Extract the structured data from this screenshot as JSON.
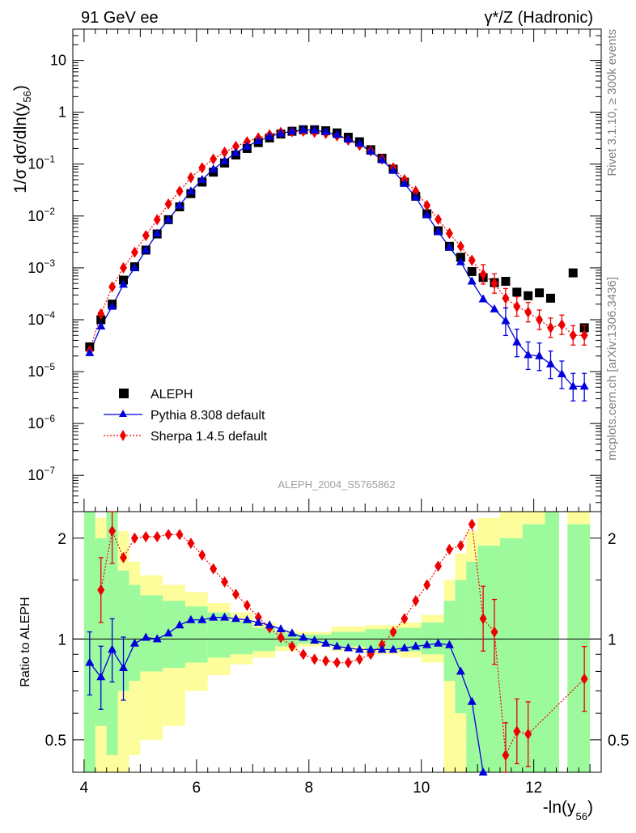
{
  "header": {
    "left_title": "91 GeV ee",
    "right_title": "γ*/Z (Hadronic)"
  },
  "side_labels": {
    "rivet": "Rivet 3.1.10, ≥ 300k events",
    "mcplots": "mcplots.cern.ch [arXiv:1306.3436]"
  },
  "colors": {
    "aleph": "#000000",
    "pythia": "#0000dd",
    "sherpa": "#ee0000",
    "band_green": "#9cfa9c",
    "band_yellow": "#fdfd9c"
  },
  "chart_data": [
    {
      "type": "scatter",
      "title": "ALEPH_2004_S5765862",
      "ylabel": "1/σ dσ/dln(y56)",
      "ylabel_parts": {
        "pre": "1/σ  dσ/dln(y",
        "sub": "56",
        "post": ")"
      },
      "yscale": "log",
      "xlim": [
        3.8,
        13.2
      ],
      "ylim": [
        2e-08,
        40
      ],
      "y_ticks": [
        {
          "value": 10,
          "label": "10"
        },
        {
          "value": 1,
          "label": "1"
        },
        {
          "value": 0.1,
          "base": "10",
          "exp": "−1"
        },
        {
          "value": 0.01,
          "base": "10",
          "exp": "−2"
        },
        {
          "value": 0.001,
          "base": "10",
          "exp": "−3"
        },
        {
          "value": 0.0001,
          "base": "10",
          "exp": "−4"
        },
        {
          "value": 1e-05,
          "base": "10",
          "exp": "−5"
        },
        {
          "value": 1e-06,
          "base": "10",
          "exp": "−6"
        },
        {
          "value": 1e-07,
          "base": "10",
          "exp": "−7"
        }
      ],
      "legend_position": "lower-left",
      "legend": [
        "ALEPH",
        "Pythia 8.308 default",
        "Sherpa 1.4.5 default"
      ],
      "series": [
        {
          "name": "ALEPH",
          "style": "square-marker",
          "x": [
            4.1,
            4.3,
            4.5,
            4.7,
            4.9,
            5.1,
            5.3,
            5.5,
            5.7,
            5.9,
            6.1,
            6.3,
            6.5,
            6.7,
            6.9,
            7.1,
            7.3,
            7.5,
            7.7,
            7.9,
            8.1,
            8.3,
            8.5,
            8.7,
            8.9,
            9.1,
            9.3,
            9.5,
            9.7,
            9.9,
            10.1,
            10.3,
            10.5,
            10.7,
            10.9,
            11.1,
            11.3,
            11.5,
            11.7,
            11.9,
            12.1,
            12.3,
            12.7,
            12.9
          ],
          "values": [
            3e-05,
            0.0001,
            0.0002,
            0.00058,
            0.00105,
            0.0022,
            0.0045,
            0.0085,
            0.015,
            0.027,
            0.045,
            0.07,
            0.105,
            0.15,
            0.2,
            0.26,
            0.32,
            0.38,
            0.43,
            0.46,
            0.46,
            0.44,
            0.4,
            0.33,
            0.27,
            0.19,
            0.13,
            0.08,
            0.045,
            0.024,
            0.011,
            0.0052,
            0.0026,
            0.0016,
            0.00085,
            0.00065,
            0.00052,
            0.00055,
            0.00034,
            0.00029,
            0.00033,
            0.00026,
            0.0008,
            7e-05
          ]
        },
        {
          "name": "Pythia 8.308 default",
          "style": "solid-line-triangle",
          "x": [
            4.1,
            4.3,
            4.5,
            4.7,
            4.9,
            5.1,
            5.3,
            5.5,
            5.7,
            5.9,
            6.1,
            6.3,
            6.5,
            6.7,
            6.9,
            7.1,
            7.3,
            7.5,
            7.7,
            7.9,
            8.1,
            8.3,
            8.5,
            8.7,
            8.9,
            9.1,
            9.3,
            9.5,
            9.7,
            9.9,
            10.1,
            10.3,
            10.5,
            10.7,
            10.9,
            11.1,
            11.3,
            11.5,
            11.7,
            11.9,
            12.1,
            12.3,
            12.5,
            12.7,
            12.9
          ],
          "values": [
            2.3e-05,
            7.5e-05,
            0.00018,
            0.00048,
            0.001,
            0.0022,
            0.0046,
            0.0085,
            0.016,
            0.03,
            0.05,
            0.08,
            0.115,
            0.165,
            0.22,
            0.28,
            0.34,
            0.39,
            0.43,
            0.46,
            0.45,
            0.42,
            0.37,
            0.3,
            0.25,
            0.175,
            0.12,
            0.075,
            0.042,
            0.023,
            0.0105,
            0.005,
            0.0025,
            0.0013,
            0.00055,
            0.00025,
            0.00016,
            9.5e-05,
            3.7e-05,
            2.1e-05,
            2e-05,
            1.4e-05,
            9e-06,
            5.2e-06,
            5.2e-06
          ]
        },
        {
          "name": "Sherpa 1.4.5 default",
          "style": "dotted-line-diamond",
          "x": [
            4.1,
            4.3,
            4.5,
            4.7,
            4.9,
            5.1,
            5.3,
            5.5,
            5.7,
            5.9,
            6.1,
            6.3,
            6.5,
            6.7,
            6.9,
            7.1,
            7.3,
            7.5,
            7.7,
            7.9,
            8.1,
            8.3,
            8.5,
            8.7,
            8.9,
            9.1,
            9.3,
            9.5,
            9.7,
            9.9,
            10.1,
            10.3,
            10.5,
            10.7,
            10.9,
            11.1,
            11.3,
            11.5,
            11.7,
            11.9,
            12.1,
            12.3,
            12.5,
            12.7,
            12.9
          ],
          "values": [
            2.5e-05,
            0.00013,
            0.00043,
            0.001,
            0.002,
            0.0042,
            0.0085,
            0.017,
            0.03,
            0.055,
            0.085,
            0.125,
            0.17,
            0.22,
            0.27,
            0.32,
            0.37,
            0.41,
            0.42,
            0.43,
            0.41,
            0.39,
            0.35,
            0.29,
            0.23,
            0.18,
            0.125,
            0.085,
            0.05,
            0.03,
            0.016,
            0.0086,
            0.0046,
            0.0026,
            0.0014,
            0.00075,
            0.0005,
            0.00026,
            0.00018,
            0.00014,
            0.0001,
            7e-05,
            8e-05,
            5e-05,
            5e-05
          ]
        }
      ]
    },
    {
      "type": "line",
      "ylabel": "Ratio to ALEPH",
      "xlabel_parts": {
        "pre": "-ln(y",
        "sub": "56",
        "post": ")"
      },
      "yscale": "log",
      "xlim": [
        3.8,
        13.2
      ],
      "ylim": [
        0.4,
        2.4
      ],
      "x_ticks": [
        4,
        6,
        8,
        10,
        12
      ],
      "y_ticks": [
        {
          "value": 2,
          "label": "2"
        },
        {
          "value": 1,
          "label": "1"
        },
        {
          "value": 0.5,
          "label": "0.5"
        }
      ],
      "reference_line": 1,
      "bands": {
        "green": [
          {
            "x": [
              4.0,
              4.2
            ],
            "range": [
              0.4,
              2.4
            ]
          },
          {
            "x": [
              4.2,
              4.4
            ],
            "range": [
              0.55,
              2.0
            ]
          },
          {
            "x": [
              4.4,
              4.6
            ],
            "range": [
              0.45,
              2.4
            ]
          },
          {
            "x": [
              4.6,
              4.8
            ],
            "range": [
              0.7,
              1.6
            ]
          },
          {
            "x": [
              4.8,
              5.0
            ],
            "range": [
              0.75,
              1.45
            ]
          },
          {
            "x": [
              5.0,
              5.4
            ],
            "range": [
              0.8,
              1.35
            ]
          },
          {
            "x": [
              5.4,
              5.8
            ],
            "range": [
              0.82,
              1.3
            ]
          },
          {
            "x": [
              5.8,
              6.2
            ],
            "range": [
              0.85,
              1.25
            ]
          },
          {
            "x": [
              6.2,
              6.6
            ],
            "range": [
              0.88,
              1.2
            ]
          },
          {
            "x": [
              6.6,
              7.0
            ],
            "range": [
              0.9,
              1.13
            ]
          },
          {
            "x": [
              7.0,
              7.4
            ],
            "range": [
              0.92,
              1.08
            ]
          },
          {
            "x": [
              7.4,
              7.8
            ],
            "range": [
              0.95,
              1.04
            ]
          },
          {
            "x": [
              7.8,
              8.4
            ],
            "range": [
              0.97,
              1.03
            ]
          },
          {
            "x": [
              8.4,
              9.0
            ],
            "range": [
              0.95,
              1.05
            ]
          },
          {
            "x": [
              9.0,
              9.6
            ],
            "range": [
              0.93,
              1.07
            ]
          },
          {
            "x": [
              9.6,
              10.0
            ],
            "range": [
              0.92,
              1.08
            ]
          },
          {
            "x": [
              10.0,
              10.4
            ],
            "range": [
              0.9,
              1.12
            ]
          },
          {
            "x": [
              10.4,
              10.6
            ],
            "range": [
              0.75,
              1.3
            ]
          },
          {
            "x": [
              10.6,
              10.8
            ],
            "range": [
              0.6,
              1.5
            ]
          },
          {
            "x": [
              10.8,
              11.0
            ],
            "range": [
              0.4,
              1.7
            ]
          },
          {
            "x": [
              11.0,
              11.4
            ],
            "range": [
              0.4,
              1.9
            ]
          },
          {
            "x": [
              11.4,
              11.8
            ],
            "range": [
              0.4,
              2.0
            ]
          },
          {
            "x": [
              11.8,
              12.2
            ],
            "range": [
              0.4,
              2.2
            ]
          },
          {
            "x": [
              12.2,
              12.45
            ],
            "range": [
              0.4,
              2.4
            ]
          },
          {
            "x": [
              12.6,
              13.0
            ],
            "range": [
              0.4,
              2.2
            ]
          }
        ],
        "yellow": [
          {
            "x": [
              4.0,
              4.2
            ],
            "range": [
              0.4,
              2.4
            ]
          },
          {
            "x": [
              4.2,
              4.4
            ],
            "range": [
              0.4,
              2.3
            ]
          },
          {
            "x": [
              4.4,
              4.6
            ],
            "range": [
              0.4,
              2.4
            ]
          },
          {
            "x": [
              4.6,
              4.8
            ],
            "range": [
              0.4,
              2.1
            ]
          },
          {
            "x": [
              4.8,
              5.0
            ],
            "range": [
              0.45,
              1.7
            ]
          },
          {
            "x": [
              5.0,
              5.4
            ],
            "range": [
              0.5,
              1.55
            ]
          },
          {
            "x": [
              5.4,
              5.8
            ],
            "range": [
              0.55,
              1.45
            ]
          },
          {
            "x": [
              5.8,
              6.2
            ],
            "range": [
              0.7,
              1.38
            ]
          },
          {
            "x": [
              6.2,
              6.6
            ],
            "range": [
              0.78,
              1.28
            ]
          },
          {
            "x": [
              6.6,
              7.0
            ],
            "range": [
              0.84,
              1.2
            ]
          },
          {
            "x": [
              7.0,
              7.4
            ],
            "range": [
              0.88,
              1.12
            ]
          },
          {
            "x": [
              7.4,
              7.8
            ],
            "range": [
              0.92,
              1.06
            ]
          },
          {
            "x": [
              7.8,
              8.4
            ],
            "range": [
              0.95,
              1.05
            ]
          },
          {
            "x": [
              8.4,
              9.0
            ],
            "range": [
              0.92,
              1.09
            ]
          },
          {
            "x": [
              9.0,
              9.6
            ],
            "range": [
              0.9,
              1.1
            ]
          },
          {
            "x": [
              9.6,
              10.0
            ],
            "range": [
              0.88,
              1.12
            ]
          },
          {
            "x": [
              10.0,
              10.4
            ],
            "range": [
              0.85,
              1.18
            ]
          },
          {
            "x": [
              10.4,
              10.6
            ],
            "range": [
              0.4,
              1.5
            ]
          },
          {
            "x": [
              10.6,
              10.8
            ],
            "range": [
              0.4,
              1.8
            ]
          },
          {
            "x": [
              10.8,
              11.0
            ],
            "range": [
              0.4,
              2.1
            ]
          },
          {
            "x": [
              11.0,
              11.4
            ],
            "range": [
              0.4,
              2.3
            ]
          },
          {
            "x": [
              11.4,
              11.8
            ],
            "range": [
              0.4,
              2.4
            ]
          },
          {
            "x": [
              11.8,
              12.2
            ],
            "range": [
              0.4,
              2.4
            ]
          },
          {
            "x": [
              12.2,
              12.45
            ],
            "range": [
              0.4,
              2.4
            ]
          },
          {
            "x": [
              12.6,
              13.0
            ],
            "range": [
              0.4,
              2.4
            ]
          }
        ]
      },
      "series": [
        {
          "name": "Pythia 8.308 default",
          "x": [
            4.1,
            4.3,
            4.5,
            4.7,
            4.9,
            5.1,
            5.3,
            5.5,
            5.7,
            5.9,
            6.1,
            6.3,
            6.5,
            6.7,
            6.9,
            7.1,
            7.3,
            7.5,
            7.7,
            7.9,
            8.1,
            8.3,
            8.5,
            8.7,
            8.9,
            9.1,
            9.3,
            9.5,
            9.7,
            9.9,
            10.1,
            10.3,
            10.5,
            10.7,
            10.9,
            11.1
          ],
          "values": [
            0.85,
            0.77,
            0.93,
            0.82,
            0.97,
            1.01,
            1.0,
            1.04,
            1.1,
            1.14,
            1.14,
            1.16,
            1.16,
            1.15,
            1.14,
            1.12,
            1.1,
            1.07,
            1.04,
            1.01,
            0.99,
            0.97,
            0.95,
            0.94,
            0.93,
            0.93,
            0.93,
            0.93,
            0.94,
            0.95,
            0.96,
            0.97,
            0.96,
            0.8,
            0.65,
            0.37
          ]
        },
        {
          "name": "Sherpa 1.4.5 default",
          "x": [
            4.3,
            4.5,
            4.7,
            4.9,
            5.1,
            5.3,
            5.5,
            5.7,
            5.9,
            6.1,
            6.3,
            6.5,
            6.7,
            6.9,
            7.1,
            7.3,
            7.5,
            7.7,
            7.9,
            8.1,
            8.3,
            8.5,
            8.7,
            8.9,
            9.1,
            9.3,
            9.5,
            9.7,
            9.9,
            10.1,
            10.3,
            10.5,
            10.7,
            10.9,
            11.1,
            11.3,
            11.5,
            11.7,
            11.9,
            12.9
          ],
          "values": [
            1.4,
            2.1,
            1.75,
            2.0,
            2.02,
            2.02,
            2.05,
            2.05,
            1.93,
            1.78,
            1.62,
            1.48,
            1.36,
            1.26,
            1.16,
            1.08,
            1.01,
            0.95,
            0.9,
            0.87,
            0.86,
            0.85,
            0.85,
            0.87,
            0.9,
            0.96,
            1.05,
            1.15,
            1.3,
            1.45,
            1.65,
            1.85,
            1.9,
            2.2,
            1.15,
            1.05,
            0.45,
            0.53,
            0.52,
            0.76
          ]
        }
      ]
    }
  ]
}
